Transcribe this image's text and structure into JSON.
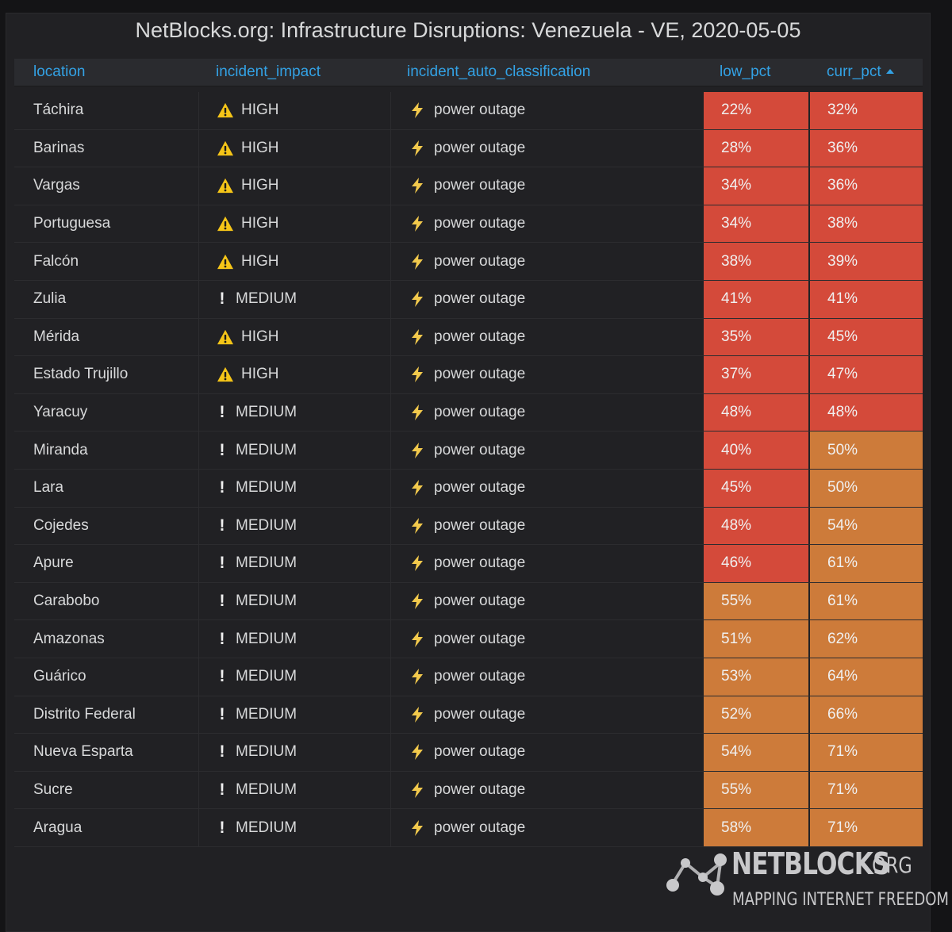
{
  "panel": {
    "title": "NetBlocks.org: Infrastructure Disruptions: Venezuela - VE, 2020-05-05"
  },
  "table": {
    "columns": [
      {
        "key": "location",
        "label": "location"
      },
      {
        "key": "incident_impact",
        "label": "incident_impact"
      },
      {
        "key": "incident_auto_classification",
        "label": "incident_auto_classification"
      },
      {
        "key": "low_pct",
        "label": "low_pct"
      },
      {
        "key": "curr_pct",
        "label": "curr_pct",
        "sorted": "ascending"
      }
    ],
    "rows": [
      {
        "location": "Táchira",
        "impact": "HIGH",
        "icon": "warning-icon",
        "classification": "power outage",
        "low_pct": "22%",
        "low_color": "red",
        "curr_pct": "32%",
        "curr_color": "red"
      },
      {
        "location": "Barinas",
        "impact": "HIGH",
        "icon": "warning-icon",
        "classification": "power outage",
        "low_pct": "28%",
        "low_color": "red",
        "curr_pct": "36%",
        "curr_color": "red"
      },
      {
        "location": "Vargas",
        "impact": "HIGH",
        "icon": "warning-icon",
        "classification": "power outage",
        "low_pct": "34%",
        "low_color": "red",
        "curr_pct": "36%",
        "curr_color": "red"
      },
      {
        "location": "Portuguesa",
        "impact": "HIGH",
        "icon": "warning-icon",
        "classification": "power outage",
        "low_pct": "34%",
        "low_color": "red",
        "curr_pct": "38%",
        "curr_color": "red"
      },
      {
        "location": "Falcón",
        "impact": "HIGH",
        "icon": "warning-icon",
        "classification": "power outage",
        "low_pct": "38%",
        "low_color": "red",
        "curr_pct": "39%",
        "curr_color": "red"
      },
      {
        "location": "Zulia",
        "impact": "MEDIUM",
        "icon": "exclamation-icon",
        "classification": "power outage",
        "low_pct": "41%",
        "low_color": "red",
        "curr_pct": "41%",
        "curr_color": "red"
      },
      {
        "location": "Mérida",
        "impact": "HIGH",
        "icon": "warning-icon",
        "classification": "power outage",
        "low_pct": "35%",
        "low_color": "red",
        "curr_pct": "45%",
        "curr_color": "red"
      },
      {
        "location": "Estado Trujillo",
        "impact": "HIGH",
        "icon": "warning-icon",
        "classification": "power outage",
        "low_pct": "37%",
        "low_color": "red",
        "curr_pct": "47%",
        "curr_color": "red"
      },
      {
        "location": "Yaracuy",
        "impact": "MEDIUM",
        "icon": "exclamation-icon",
        "classification": "power outage",
        "low_pct": "48%",
        "low_color": "red",
        "curr_pct": "48%",
        "curr_color": "red"
      },
      {
        "location": "Miranda",
        "impact": "MEDIUM",
        "icon": "exclamation-icon",
        "classification": "power outage",
        "low_pct": "40%",
        "low_color": "red",
        "curr_pct": "50%",
        "curr_color": "orange"
      },
      {
        "location": "Lara",
        "impact": "MEDIUM",
        "icon": "exclamation-icon",
        "classification": "power outage",
        "low_pct": "45%",
        "low_color": "red",
        "curr_pct": "50%",
        "curr_color": "orange"
      },
      {
        "location": "Cojedes",
        "impact": "MEDIUM",
        "icon": "exclamation-icon",
        "classification": "power outage",
        "low_pct": "48%",
        "low_color": "red",
        "curr_pct": "54%",
        "curr_color": "orange"
      },
      {
        "location": "Apure",
        "impact": "MEDIUM",
        "icon": "exclamation-icon",
        "classification": "power outage",
        "low_pct": "46%",
        "low_color": "red",
        "curr_pct": "61%",
        "curr_color": "orange"
      },
      {
        "location": "Carabobo",
        "impact": "MEDIUM",
        "icon": "exclamation-icon",
        "classification": "power outage",
        "low_pct": "55%",
        "low_color": "orange",
        "curr_pct": "61%",
        "curr_color": "orange"
      },
      {
        "location": "Amazonas",
        "impact": "MEDIUM",
        "icon": "exclamation-icon",
        "classification": "power outage",
        "low_pct": "51%",
        "low_color": "orange",
        "curr_pct": "62%",
        "curr_color": "orange"
      },
      {
        "location": "Guárico",
        "impact": "MEDIUM",
        "icon": "exclamation-icon",
        "classification": "power outage",
        "low_pct": "53%",
        "low_color": "orange",
        "curr_pct": "64%",
        "curr_color": "orange"
      },
      {
        "location": "Distrito Federal",
        "impact": "MEDIUM",
        "icon": "exclamation-icon",
        "classification": "power outage",
        "low_pct": "52%",
        "low_color": "orange",
        "curr_pct": "66%",
        "curr_color": "orange"
      },
      {
        "location": "Nueva Esparta",
        "impact": "MEDIUM",
        "icon": "exclamation-icon",
        "classification": "power outage",
        "low_pct": "54%",
        "low_color": "orange",
        "curr_pct": "71%",
        "curr_color": "orange"
      },
      {
        "location": "Sucre",
        "impact": "MEDIUM",
        "icon": "exclamation-icon",
        "classification": "power outage",
        "low_pct": "55%",
        "low_color": "orange",
        "curr_pct": "71%",
        "curr_color": "orange"
      },
      {
        "location": "Aragua",
        "impact": "MEDIUM",
        "icon": "exclamation-icon",
        "classification": "power outage",
        "low_pct": "58%",
        "low_color": "orange",
        "curr_pct": "71%",
        "curr_color": "orange"
      }
    ]
  },
  "logo": {
    "name_main": "NETBLOCKS",
    "name_suffix": ".ORG",
    "tagline": "MAPPING INTERNET FREEDOM"
  },
  "colors": {
    "red": "#d44a3a",
    "orange": "#cd7b3a",
    "header_text": "#33a2e5",
    "warning": "#f5c518",
    "bolt": "#f2c94c"
  }
}
